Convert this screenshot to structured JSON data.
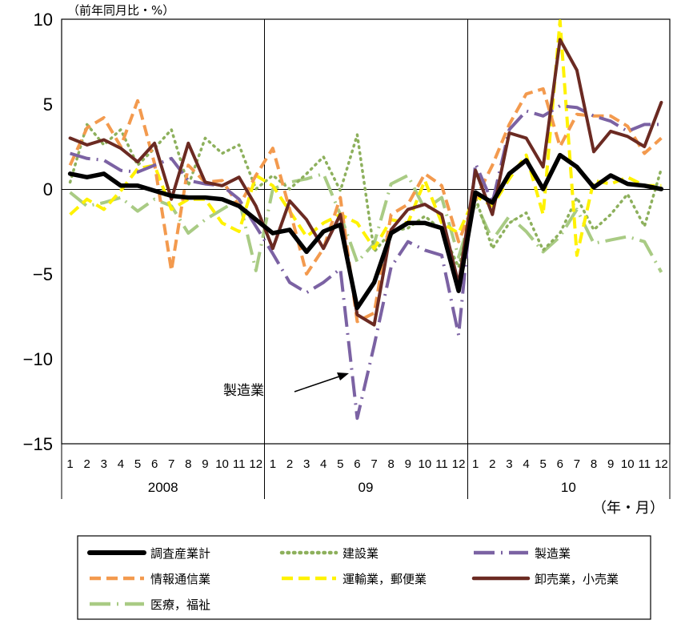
{
  "chart_data": {
    "type": "line",
    "unit_label": "（前年同月比・%）",
    "xlabel": "（年・月）",
    "ylim": [
      -15,
      10
    ],
    "yticks": [
      10,
      5,
      0,
      -5,
      -10,
      -15
    ],
    "month_labels": [
      "1",
      "2",
      "3",
      "4",
      "5",
      "6",
      "7",
      "8",
      "9",
      "10",
      "11",
      "12",
      "1",
      "2",
      "3",
      "4",
      "5",
      "6",
      "7",
      "8",
      "9",
      "10",
      "11",
      "12",
      "1",
      "2",
      "3",
      "4",
      "5",
      "6",
      "7",
      "8",
      "9",
      "10",
      "11",
      "12"
    ],
    "year_labels": [
      "2008",
      "09",
      "10"
    ],
    "annotation": "製造業",
    "colors": {
      "chosa": "#000000",
      "kensetsu": "#8db05c",
      "seizo": "#7b62a3",
      "joho": "#f39a4e",
      "unyu": "#fff200",
      "oroshi": "#6b2a22",
      "iryo": "#a9cb84"
    },
    "series": [
      {
        "key": "chosa",
        "name": "調査産業計",
        "style": "solid",
        "values": [
          0.9,
          0.7,
          0.9,
          0.2,
          0.2,
          -0.1,
          -0.4,
          -0.5,
          -0.5,
          -0.6,
          -1.0,
          -1.8,
          -2.6,
          -2.4,
          -3.7,
          -2.5,
          -2.1,
          -7.0,
          -5.5,
          -2.6,
          -2.0,
          -2.0,
          -2.3,
          -6.0,
          -0.2,
          -0.8,
          0.9,
          1.7,
          0.0,
          2.0,
          1.3,
          0.1,
          0.8,
          0.3,
          0.2,
          0.0
        ]
      },
      {
        "key": "kensetsu",
        "name": "建設業",
        "style": "dotted",
        "values": [
          0.4,
          3.8,
          2.6,
          3.5,
          1.4,
          2.4,
          3.5,
          0.2,
          3.0,
          2.1,
          2.6,
          0.0,
          0.8,
          0.0,
          0.9,
          1.9,
          -0.1,
          3.2,
          -3.7,
          -2.5,
          -2.3,
          -1.6,
          -2.4,
          -4.6,
          -0.5,
          -3.5,
          -2.0,
          -1.4,
          -3.6,
          -2.6,
          -0.5,
          -2.4,
          -1.5,
          -0.3,
          -2.2,
          1.2
        ]
      },
      {
        "key": "seizo",
        "name": "製造業",
        "style": "longdash",
        "values": [
          2.1,
          1.8,
          1.7,
          1.1,
          1.0,
          1.4,
          1.8,
          0.5,
          0.3,
          0.2,
          -0.6,
          -2.2,
          -3.8,
          -5.5,
          -6.1,
          -5.5,
          -4.7,
          -13.5,
          -9.2,
          -4.6,
          -3.1,
          -3.6,
          -3.9,
          -8.6,
          1.5,
          -0.8,
          3.5,
          4.6,
          4.3,
          4.9,
          4.8,
          4.3,
          4.0,
          3.4,
          3.8,
          3.8
        ]
      },
      {
        "key": "joho",
        "name": "情報通信業",
        "style": "dashed",
        "values": [
          1.4,
          3.6,
          4.2,
          2.5,
          5.2,
          1.5,
          -4.8,
          1.4,
          0.4,
          0.5,
          -1.0,
          0.8,
          2.4,
          -1.2,
          -5.0,
          -3.5,
          -0.5,
          -7.8,
          -7.3,
          -1.5,
          -0.9,
          0.9,
          0.2,
          -3.1,
          -0.6,
          1.4,
          3.8,
          5.6,
          5.9,
          2.5,
          4.4,
          4.3,
          4.3,
          3.7,
          2.1,
          3.0
        ]
      },
      {
        "key": "unyu",
        "name": "運輸業，郵便業",
        "style": "dashed",
        "values": [
          -1.5,
          -0.6,
          -1.2,
          -0.1,
          1.2,
          1.4,
          -1.2,
          -0.6,
          -0.6,
          -2.0,
          -2.5,
          0.8,
          0.2,
          -1.3,
          -2.8,
          -2.0,
          -1.5,
          -2.0,
          -3.5,
          -1.8,
          -2.0,
          0.5,
          -2.0,
          -2.6,
          -0.4,
          -1.0,
          0.6,
          2.0,
          -1.5,
          9.9,
          -3.9,
          0.5,
          0.3,
          0.7,
          0.2,
          0.2
        ]
      },
      {
        "key": "oroshi",
        "name": "卸売業，小売業",
        "style": "solid",
        "values": [
          3.0,
          2.6,
          2.9,
          2.4,
          1.6,
          2.7,
          -0.6,
          2.7,
          0.4,
          0.2,
          0.7,
          -1.0,
          -3.5,
          -0.7,
          -1.8,
          -3.5,
          -1.5,
          -7.4,
          -8.0,
          -2.4,
          -1.2,
          -0.9,
          -1.5,
          -5.6,
          1.1,
          -1.5,
          3.3,
          3.0,
          1.3,
          8.8,
          7.0,
          2.2,
          3.4,
          3.1,
          2.5,
          5.1
        ]
      },
      {
        "key": "iryo",
        "name": "医療，福祉",
        "style": "longdash",
        "values": [
          -0.2,
          -1.0,
          -0.8,
          -0.5,
          -1.3,
          -0.6,
          -1.0,
          -2.6,
          -1.8,
          -1.2,
          -0.6,
          -4.8,
          0.0,
          0.4,
          0.6,
          0.9,
          -1.5,
          -4.3,
          -3.2,
          0.3,
          0.8,
          -1.2,
          -0.5,
          -4.0,
          -0.8,
          -3.0,
          -1.6,
          -2.5,
          -3.7,
          -2.8,
          -1.2,
          -3.2,
          -3.0,
          -2.8,
          -3.1,
          -4.9
        ]
      }
    ]
  }
}
